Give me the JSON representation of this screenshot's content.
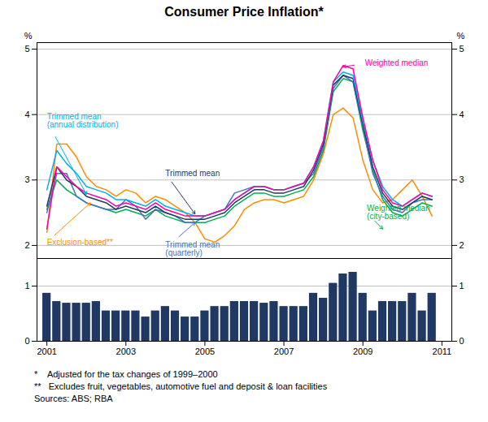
{
  "chart_data": [
    {
      "type": "line",
      "title": "Consumer Price Inflation*",
      "x": [
        2001.0,
        2001.25,
        2001.5,
        2001.75,
        2002.0,
        2002.25,
        2002.5,
        2002.75,
        2003.0,
        2003.25,
        2003.5,
        2003.75,
        2004.0,
        2004.25,
        2004.5,
        2004.75,
        2005.0,
        2005.25,
        2005.5,
        2005.75,
        2006.0,
        2006.25,
        2006.5,
        2006.75,
        2007.0,
        2007.25,
        2007.5,
        2007.75,
        2008.0,
        2008.25,
        2008.5,
        2008.75,
        2009.0,
        2009.25,
        2009.5,
        2009.75,
        2010.0,
        2010.25,
        2010.5,
        2010.75
      ],
      "xlim": [
        2000.75,
        2011.25
      ],
      "ylim": [
        1.8,
        5.1
      ],
      "yticks": [
        2,
        3,
        4,
        5
      ],
      "y2lim": [
        1.8,
        5.1
      ],
      "y2ticks": [
        2,
        3,
        4,
        5
      ],
      "y_label": "%",
      "y2_label": "%",
      "grid": true,
      "tick_labels": "y",
      "series": [
        {
          "name": "Exclusion-based**",
          "color": "#ff8c00",
          "label_at": [
            2001.0,
            2.05
          ],
          "points_to": [
            2002.1,
            2.65
          ],
          "values": [
            2.2,
            3.55,
            3.55,
            3.35,
            3.05,
            2.9,
            2.85,
            2.75,
            2.85,
            2.8,
            2.65,
            2.75,
            2.7,
            2.6,
            2.5,
            2.35,
            2.1,
            2.05,
            2.15,
            2.3,
            2.55,
            2.65,
            2.7,
            2.7,
            2.65,
            2.7,
            2.75,
            3.0,
            3.4,
            4.0,
            4.1,
            3.95,
            3.3,
            2.85,
            2.65,
            2.7,
            2.85,
            3.0,
            2.75,
            2.45
          ]
        },
        {
          "name": "Weighted median\n(city-based)",
          "color": "#00b050",
          "label_at": [
            2009.1,
            2.5
          ],
          "points_to": [
            2009.5,
            2.25
          ],
          "values": [
            2.55,
            3.0,
            2.85,
            2.75,
            2.65,
            2.6,
            2.55,
            2.5,
            2.55,
            2.5,
            2.45,
            2.55,
            2.45,
            2.4,
            2.35,
            2.35,
            2.35,
            2.4,
            2.45,
            2.6,
            2.7,
            2.8,
            2.8,
            2.75,
            2.75,
            2.8,
            2.85,
            3.05,
            3.45,
            4.35,
            4.55,
            4.5,
            3.75,
            3.15,
            2.7,
            2.5,
            2.45,
            2.55,
            2.65,
            2.6
          ]
        },
        {
          "name": "Trimmed mean\n(quarterly)",
          "color": "#4472c4",
          "label_at": [
            2004.0,
            1.95
          ],
          "points_to": [
            2004.75,
            2.35
          ],
          "values": [
            2.5,
            3.1,
            3.1,
            2.75,
            2.65,
            2.6,
            2.55,
            2.55,
            2.7,
            2.6,
            2.4,
            2.55,
            2.5,
            2.45,
            2.35,
            2.35,
            2.45,
            2.5,
            2.55,
            2.8,
            2.85,
            2.9,
            2.9,
            2.85,
            2.85,
            2.9,
            2.95,
            3.1,
            3.5,
            4.4,
            4.6,
            4.5,
            3.8,
            3.1,
            2.75,
            2.55,
            2.5,
            2.65,
            2.7,
            2.7
          ]
        },
        {
          "name": "Trimmed mean",
          "color": "#1f3864",
          "label_at": [
            2004.0,
            3.1
          ],
          "points_to": [
            2004.75,
            2.48
          ],
          "values": [
            2.6,
            3.2,
            3.0,
            2.9,
            2.75,
            2.7,
            2.65,
            2.55,
            2.6,
            2.55,
            2.5,
            2.6,
            2.5,
            2.45,
            2.4,
            2.4,
            2.4,
            2.45,
            2.5,
            2.65,
            2.75,
            2.85,
            2.85,
            2.8,
            2.8,
            2.85,
            2.9,
            3.15,
            3.55,
            4.45,
            4.6,
            4.55,
            3.85,
            3.2,
            2.8,
            2.6,
            2.55,
            2.65,
            2.75,
            2.7
          ]
        },
        {
          "name": "Trimmed mean\n(annual distribution)",
          "color": "#00b0f0",
          "label_at": [
            2001.0,
            3.9
          ],
          "points_to": [
            2002.0,
            2.78
          ],
          "values": [
            2.85,
            3.45,
            3.25,
            3.1,
            2.9,
            2.85,
            2.8,
            2.7,
            2.7,
            2.65,
            2.6,
            2.7,
            2.6,
            2.55,
            2.5,
            2.45,
            2.45,
            2.5,
            2.55,
            2.7,
            2.8,
            2.9,
            2.9,
            2.85,
            2.85,
            2.9,
            2.95,
            3.2,
            3.6,
            4.5,
            4.65,
            4.6,
            3.9,
            3.3,
            2.9,
            2.7,
            2.6,
            2.7,
            2.8,
            2.75
          ]
        },
        {
          "name": "Weighted median",
          "color": "#ff00aa",
          "label_at": [
            2009.05,
            4.78
          ],
          "points_to": [
            2008.5,
            4.73
          ],
          "values": [
            2.25,
            3.2,
            3.05,
            2.9,
            2.8,
            2.75,
            2.7,
            2.6,
            2.65,
            2.6,
            2.55,
            2.65,
            2.55,
            2.5,
            2.45,
            2.45,
            2.45,
            2.5,
            2.55,
            2.7,
            2.8,
            2.9,
            2.9,
            2.85,
            2.85,
            2.9,
            2.95,
            3.2,
            3.6,
            4.5,
            4.75,
            4.7,
            3.95,
            3.3,
            2.85,
            2.65,
            2.6,
            2.7,
            2.8,
            2.75
          ]
        }
      ]
    },
    {
      "type": "bar",
      "x": [
        2001.0,
        2001.25,
        2001.5,
        2001.75,
        2002.0,
        2002.25,
        2002.5,
        2002.75,
        2003.0,
        2003.25,
        2003.5,
        2003.75,
        2004.0,
        2004.25,
        2004.5,
        2004.75,
        2005.0,
        2005.25,
        2005.5,
        2005.75,
        2006.0,
        2006.25,
        2006.5,
        2006.75,
        2007.0,
        2007.25,
        2007.5,
        2007.75,
        2008.0,
        2008.25,
        2008.5,
        2008.75,
        2009.0,
        2009.25,
        2009.5,
        2009.75,
        2010.0,
        2010.25,
        2010.5,
        2010.75
      ],
      "values": [
        0.87,
        0.72,
        0.69,
        0.69,
        0.69,
        0.72,
        0.55,
        0.55,
        0.55,
        0.55,
        0.44,
        0.55,
        0.63,
        0.55,
        0.44,
        0.44,
        0.55,
        0.63,
        0.63,
        0.72,
        0.72,
        0.72,
        0.69,
        0.72,
        0.63,
        0.63,
        0.63,
        0.87,
        0.78,
        1.05,
        1.22,
        1.25,
        0.87,
        0.55,
        0.72,
        0.72,
        0.72,
        0.87,
        0.55,
        0.87
      ],
      "color": "#1f3864",
      "xlim": [
        2000.75,
        2011.25
      ],
      "xticks": [
        2001,
        2003,
        2005,
        2007,
        2009,
        2011
      ],
      "ylim": [
        0,
        1.5
      ],
      "yticks": [
        0,
        1
      ],
      "y2lim": [
        0,
        1.5
      ],
      "y2ticks": [
        0,
        1
      ],
      "grid": true,
      "footnotes": [
        "*    Adjusted for the tax changes of 1999–2000",
        "**   Excludes fruit, vegetables, automotive fuel and deposit & loan facilities",
        "Sources: ABS; RBA"
      ]
    }
  ]
}
